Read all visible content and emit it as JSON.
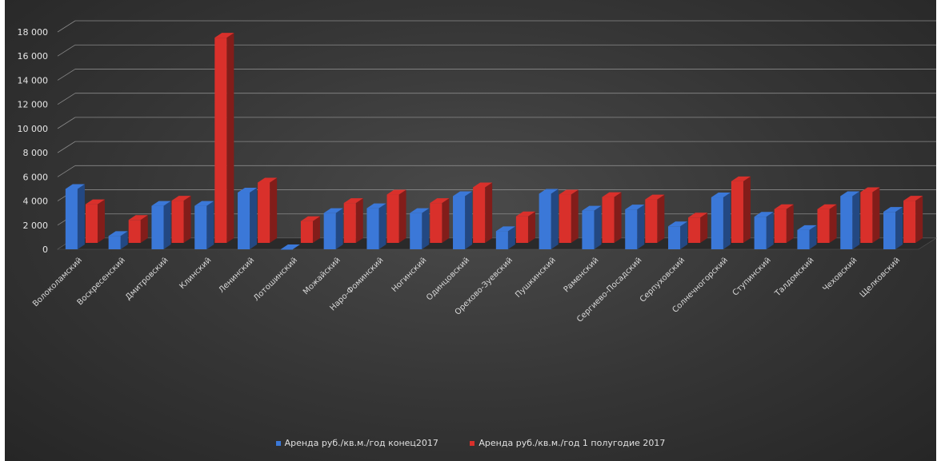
{
  "chart_data": {
    "type": "bar",
    "categories": [
      "Волоколамский",
      "Воскресенский",
      "Дмитровский",
      "Клинский",
      "Ленинский",
      "Лотошинский",
      "Можайский",
      "Наро-Фоминский",
      "Ногинский",
      "Одинцовский",
      "Орехово-Зуевский",
      "Пушкинский",
      "Раменский",
      "Сергиево-Посадский",
      "Серпуховский",
      "Солнечногорский",
      "Ступинский",
      "Талдомский",
      "Чеховский",
      "Щелковский"
    ],
    "series": [
      {
        "name": "Аренда руб./кв.м./год конец2017",
        "color": "#3b78d8",
        "values": [
          5000,
          1100,
          3600,
          3600,
          4700,
          0,
          3000,
          3400,
          3000,
          4400,
          1500,
          4600,
          3200,
          3300,
          1900,
          4300,
          2700,
          1600,
          4400,
          3100
        ]
      },
      {
        "name": "Аренда руб./кв.м./год 1 полугодие 2017",
        "color": "#d9302b",
        "values": [
          3200,
          1900,
          3500,
          17000,
          5000,
          1800,
          3300,
          4000,
          3300,
          4600,
          2200,
          4000,
          3800,
          3600,
          2100,
          5100,
          2800,
          2800,
          4200,
          3500
        ]
      }
    ],
    "ylim": [
      0,
      18000
    ],
    "yticks": [
      0,
      2000,
      4000,
      6000,
      8000,
      10000,
      12000,
      14000,
      16000,
      18000
    ],
    "ytick_labels": [
      "0",
      "2 000",
      "4 000",
      "6 000",
      "8 000",
      "10 000",
      "12 000",
      "14 000",
      "16 000",
      "18 000"
    ],
    "grid": true,
    "legend_position": "bottom"
  }
}
